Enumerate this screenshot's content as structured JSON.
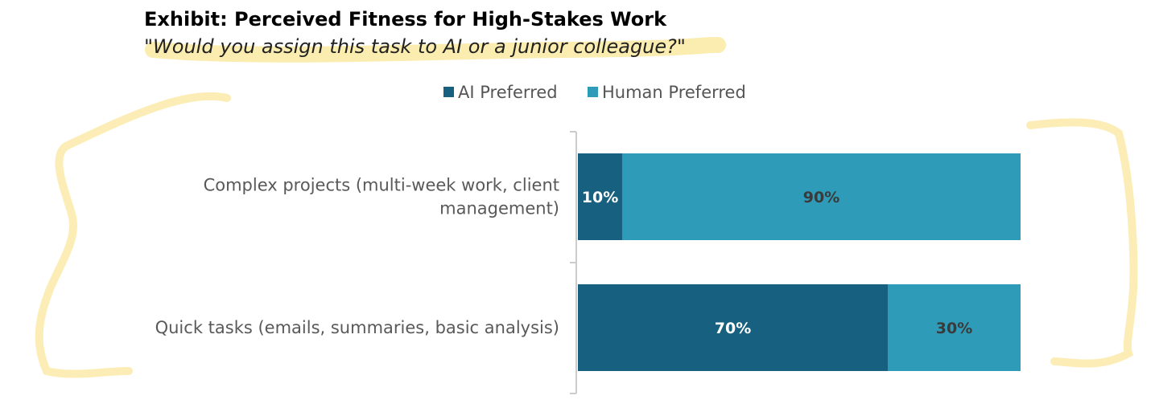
{
  "chart_data": {
    "type": "bar",
    "orientation": "horizontal",
    "stacked": true,
    "title": "Exhibit: Perceived Fitness for High-Stakes Work",
    "subtitle": "\"Would you assign this task to AI or a junior colleague?\"",
    "categories": [
      [
        "Complex projects (multi-week work, client",
        "management)"
      ],
      [
        "Quick tasks (emails, summaries, basic analysis)"
      ]
    ],
    "series": [
      {
        "name": "AI Preferred",
        "values": [
          10,
          70
        ],
        "labels": [
          "10%",
          "70%"
        ]
      },
      {
        "name": "Human Preferred",
        "values": [
          90,
          30
        ],
        "labels": [
          "90%",
          "30%"
        ]
      }
    ],
    "value_range": [
      0,
      100
    ],
    "legend_position": "top",
    "grid": false,
    "colors": {
      "ai_preferred": "#17607f",
      "human_preferred": "#2e9cb8",
      "label_on_dark": "#ffffff",
      "label_on_light": "#3a3a3a",
      "highlight": "#f9df7a",
      "axis": "#cccccc"
    }
  }
}
